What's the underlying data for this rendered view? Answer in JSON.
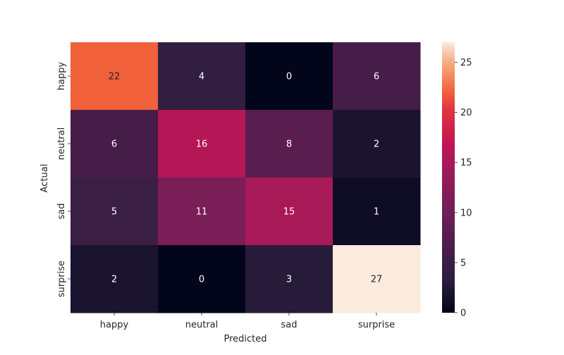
{
  "chart_data": {
    "type": "heatmap",
    "x_categories": [
      "happy",
      "neutral",
      "sad",
      "surprise"
    ],
    "y_categories": [
      "happy",
      "neutral",
      "sad",
      "surprise"
    ],
    "values": [
      [
        22,
        4,
        0,
        6
      ],
      [
        6,
        16,
        8,
        2
      ],
      [
        5,
        11,
        15,
        1
      ],
      [
        2,
        0,
        3,
        27
      ]
    ],
    "xlabel": "Predicted",
    "ylabel": "Actual",
    "colorbar": {
      "range": [
        0,
        27
      ],
      "ticks": [
        0,
        5,
        10,
        15,
        20,
        25
      ]
    },
    "colormap": "rocket",
    "annotation_color_light": "#ffffff",
    "annotation_color_dark": "#262626"
  }
}
